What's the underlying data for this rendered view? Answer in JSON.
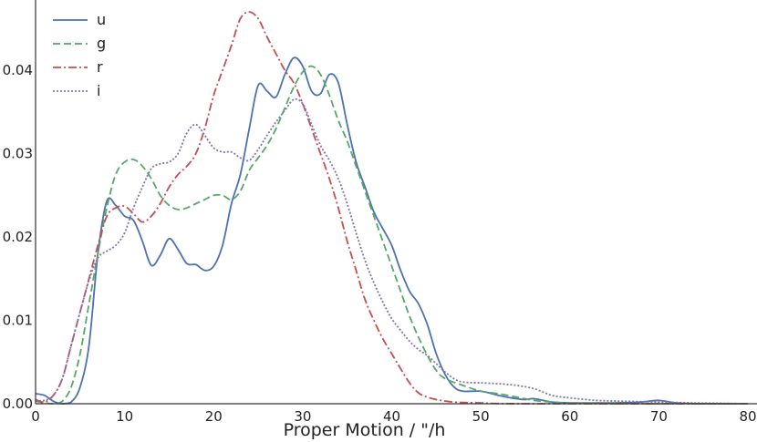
{
  "chart_data": {
    "type": "line",
    "xlabel": "Proper Motion / \"/h",
    "ylabel": "",
    "xlim": [
      0,
      80
    ],
    "ylim": [
      0,
      0.048
    ],
    "xticks": [
      0,
      10,
      20,
      30,
      40,
      50,
      60,
      70,
      80
    ],
    "yticks": [
      0.0,
      0.01,
      0.02,
      0.03,
      0.04
    ],
    "xtick_labels": [
      "0",
      "10",
      "20",
      "30",
      "40",
      "50",
      "60",
      "70",
      "80"
    ],
    "ytick_labels": [
      "0.00",
      "0.01",
      "0.02",
      "0.03",
      "0.04"
    ],
    "grid": false,
    "legend": "top-left",
    "series": [
      {
        "name": "u",
        "color": "#4C72B0",
        "dash": "solid",
        "points": [
          [
            0,
            0.0012
          ],
          [
            1,
            0.001
          ],
          [
            2,
            0.0003
          ],
          [
            3,
            0.0
          ],
          [
            4,
            0.0002
          ],
          [
            5,
            0.002
          ],
          [
            6,
            0.007
          ],
          [
            7,
            0.018
          ],
          [
            8,
            0.0243
          ],
          [
            9,
            0.0238
          ],
          [
            10,
            0.0225
          ],
          [
            11,
            0.022
          ],
          [
            12,
            0.0195
          ],
          [
            13,
            0.0166
          ],
          [
            14,
            0.0178
          ],
          [
            15,
            0.0198
          ],
          [
            16,
            0.0185
          ],
          [
            17,
            0.0168
          ],
          [
            18,
            0.0167
          ],
          [
            19,
            0.016
          ],
          [
            20,
            0.0165
          ],
          [
            21,
            0.019
          ],
          [
            22,
            0.024
          ],
          [
            23,
            0.0275
          ],
          [
            24,
            0.033
          ],
          [
            25,
            0.0382
          ],
          [
            26,
            0.0375
          ],
          [
            27,
            0.0368
          ],
          [
            28,
            0.0395
          ],
          [
            29,
            0.0415
          ],
          [
            30,
            0.0405
          ],
          [
            31,
            0.0375
          ],
          [
            32,
            0.0372
          ],
          [
            33,
            0.0395
          ],
          [
            34,
            0.0385
          ],
          [
            35,
            0.0335
          ],
          [
            36,
            0.029
          ],
          [
            37,
            0.026
          ],
          [
            38,
            0.023
          ],
          [
            39,
            0.021
          ],
          [
            40,
            0.019
          ],
          [
            41,
            0.016
          ],
          [
            42,
            0.0135
          ],
          [
            43,
            0.012
          ],
          [
            44,
            0.0095
          ],
          [
            45,
            0.006
          ],
          [
            46,
            0.0035
          ],
          [
            47,
            0.002
          ],
          [
            48,
            0.0015
          ],
          [
            50,
            0.0015
          ],
          [
            52,
            0.001
          ],
          [
            54,
            0.0006
          ],
          [
            55,
            0.0005
          ],
          [
            56,
            0.0006
          ],
          [
            58,
            0.0002
          ],
          [
            60,
            0.0001
          ],
          [
            65,
            0.0001
          ],
          [
            68,
            0.0002
          ],
          [
            70,
            0.0004
          ],
          [
            72,
            0.0001
          ],
          [
            75,
            0.0
          ],
          [
            80,
            0.0
          ]
        ]
      },
      {
        "name": "g",
        "color": "#55A868",
        "dash": "8,4",
        "points": [
          [
            0,
            0.0003
          ],
          [
            1,
            0.0001
          ],
          [
            2,
            0.0
          ],
          [
            3,
            0.0003
          ],
          [
            4,
            0.002
          ],
          [
            5,
            0.006
          ],
          [
            6,
            0.012
          ],
          [
            7,
            0.018
          ],
          [
            8,
            0.0235
          ],
          [
            9,
            0.0275
          ],
          [
            10,
            0.029
          ],
          [
            11,
            0.0293
          ],
          [
            12,
            0.0285
          ],
          [
            13,
            0.027
          ],
          [
            14,
            0.025
          ],
          [
            15,
            0.0238
          ],
          [
            16,
            0.0233
          ],
          [
            17,
            0.0235
          ],
          [
            18,
            0.024
          ],
          [
            19,
            0.0245
          ],
          [
            20,
            0.025
          ],
          [
            21,
            0.025
          ],
          [
            22,
            0.0245
          ],
          [
            23,
            0.0255
          ],
          [
            24,
            0.028
          ],
          [
            25,
            0.0295
          ],
          [
            26,
            0.031
          ],
          [
            27,
            0.033
          ],
          [
            28,
            0.0355
          ],
          [
            29,
            0.038
          ],
          [
            30,
            0.0398
          ],
          [
            31,
            0.0405
          ],
          [
            32,
            0.0395
          ],
          [
            33,
            0.037
          ],
          [
            34,
            0.034
          ],
          [
            35,
            0.0315
          ],
          [
            36,
            0.0285
          ],
          [
            37,
            0.0255
          ],
          [
            38,
            0.0225
          ],
          [
            39,
            0.0195
          ],
          [
            40,
            0.0165
          ],
          [
            41,
            0.0135
          ],
          [
            42,
            0.0105
          ],
          [
            43,
            0.008
          ],
          [
            44,
            0.0058
          ],
          [
            45,
            0.004
          ],
          [
            46,
            0.003
          ],
          [
            48,
            0.0022
          ],
          [
            50,
            0.0015
          ],
          [
            52,
            0.0012
          ],
          [
            54,
            0.0008
          ],
          [
            56,
            0.0004
          ],
          [
            58,
            0.0002
          ],
          [
            60,
            0.0001
          ],
          [
            65,
            0.0
          ],
          [
            70,
            0.0
          ],
          [
            80,
            0.0
          ]
        ]
      },
      {
        "name": "r",
        "color": "#C44E52",
        "dash": "9,3,2,3",
        "points": [
          [
            0,
            0.0005
          ],
          [
            1,
            0.0002
          ],
          [
            2,
            0.001
          ],
          [
            3,
            0.003
          ],
          [
            4,
            0.007
          ],
          [
            5,
            0.011
          ],
          [
            6,
            0.015
          ],
          [
            7,
            0.019
          ],
          [
            8,
            0.0225
          ],
          [
            9,
            0.0235
          ],
          [
            10,
            0.0237
          ],
          [
            11,
            0.0228
          ],
          [
            12,
            0.0218
          ],
          [
            13,
            0.0225
          ],
          [
            14,
            0.024
          ],
          [
            15,
            0.026
          ],
          [
            16,
            0.0275
          ],
          [
            17,
            0.0285
          ],
          [
            18,
            0.03
          ],
          [
            19,
            0.033
          ],
          [
            20,
            0.037
          ],
          [
            21,
            0.04
          ],
          [
            22,
            0.043
          ],
          [
            23,
            0.0462
          ],
          [
            24,
            0.047
          ],
          [
            25,
            0.0462
          ],
          [
            26,
            0.044
          ],
          [
            27,
            0.042
          ],
          [
            28,
            0.04
          ],
          [
            29,
            0.0385
          ],
          [
            30,
            0.036
          ],
          [
            31,
            0.033
          ],
          [
            32,
            0.03
          ],
          [
            33,
            0.027
          ],
          [
            34,
            0.0235
          ],
          [
            35,
            0.0195
          ],
          [
            36,
            0.016
          ],
          [
            37,
            0.0125
          ],
          [
            38,
            0.01
          ],
          [
            39,
            0.0078
          ],
          [
            40,
            0.006
          ],
          [
            41,
            0.0042
          ],
          [
            42,
            0.0025
          ],
          [
            43,
            0.0013
          ],
          [
            44,
            0.0008
          ],
          [
            45,
            0.0005
          ],
          [
            47,
            0.0002
          ],
          [
            50,
            0.0001
          ],
          [
            55,
            0.0
          ],
          [
            80,
            0.0
          ]
        ]
      },
      {
        "name": "i",
        "color": "#8172B2",
        "dash": "2,2",
        "points": [
          [
            0,
            0.0004
          ],
          [
            1,
            0.0004
          ],
          [
            2,
            0.001
          ],
          [
            3,
            0.003
          ],
          [
            4,
            0.007
          ],
          [
            5,
            0.011
          ],
          [
            6,
            0.0148
          ],
          [
            7,
            0.0175
          ],
          [
            8,
            0.0183
          ],
          [
            9,
            0.019
          ],
          [
            10,
            0.0205
          ],
          [
            11,
            0.0235
          ],
          [
            12,
            0.026
          ],
          [
            13,
            0.0282
          ],
          [
            14,
            0.0288
          ],
          [
            15,
            0.029
          ],
          [
            16,
            0.03
          ],
          [
            17,
            0.0325
          ],
          [
            18,
            0.0335
          ],
          [
            19,
            0.0322
          ],
          [
            20,
            0.0307
          ],
          [
            21,
            0.0302
          ],
          [
            22,
            0.0302
          ],
          [
            23,
            0.0295
          ],
          [
            24,
            0.0292
          ],
          [
            25,
            0.0305
          ],
          [
            26,
            0.0322
          ],
          [
            27,
            0.0338
          ],
          [
            28,
            0.0352
          ],
          [
            29,
            0.0365
          ],
          [
            30,
            0.036
          ],
          [
            31,
            0.0335
          ],
          [
            32,
            0.031
          ],
          [
            33,
            0.0292
          ],
          [
            34,
            0.027
          ],
          [
            35,
            0.024
          ],
          [
            36,
            0.0205
          ],
          [
            37,
            0.0172
          ],
          [
            38,
            0.0145
          ],
          [
            39,
            0.0122
          ],
          [
            40,
            0.0102
          ],
          [
            41,
            0.0088
          ],
          [
            42,
            0.0075
          ],
          [
            43,
            0.0065
          ],
          [
            44,
            0.0058
          ],
          [
            45,
            0.0048
          ],
          [
            46,
            0.0038
          ],
          [
            47,
            0.003
          ],
          [
            48,
            0.0026
          ],
          [
            50,
            0.0025
          ],
          [
            52,
            0.0024
          ],
          [
            54,
            0.0022
          ],
          [
            56,
            0.0018
          ],
          [
            58,
            0.001
          ],
          [
            60,
            0.0007
          ],
          [
            63,
            0.0004
          ],
          [
            66,
            0.0003
          ],
          [
            70,
            0.0002
          ],
          [
            74,
            0.0001
          ],
          [
            80,
            0.0
          ]
        ]
      }
    ]
  }
}
